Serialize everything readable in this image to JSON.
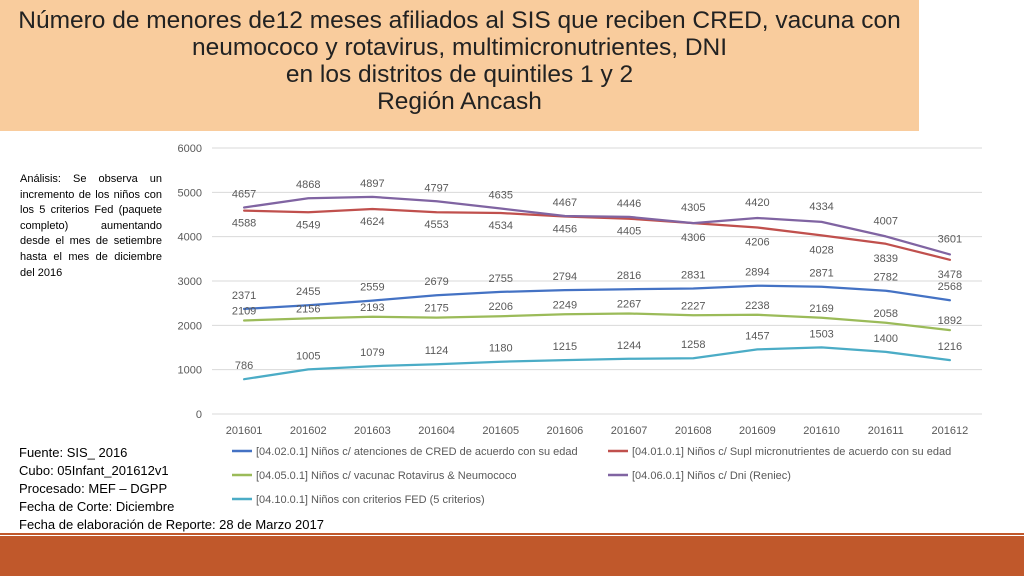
{
  "title": {
    "line1": "Número de menores de12 meses afiliados al SIS que reciben CRED, vacuna con",
    "line2": "neumococo y rotavirus, multimicronutrientes, DNI",
    "line3": "en los distritos de quintiles 1 y 2",
    "line4": "Región Ancash"
  },
  "analysis": "Análisis: Se observa un incremento de los niños con los 5 criterios Fed (paquete completo) aumentando desde el mes de setiembre hasta el mes de diciembre del 2016",
  "source": {
    "fuente": "Fuente: SIS_ 2016",
    "cubo": "Cubo: 05Infant_201612v1",
    "procesado": "Procesado: MEF – DGPP",
    "fecha_corte": "Fecha de Corte: Diciembre",
    "fecha_elab": "Fecha de elaboración de Reporte: 28 de Marzo 2017"
  },
  "colors": {
    "header_bg": "#f9cc9d",
    "bottom_band": "#c0582b"
  },
  "chart_data": {
    "type": "line",
    "categories": [
      "201601",
      "201602",
      "201603",
      "201604",
      "201605",
      "201606",
      "201607",
      "201608",
      "201609",
      "201610",
      "201611",
      "201612"
    ],
    "yticks": [
      0,
      1000,
      2000,
      3000,
      4000,
      5000,
      6000
    ],
    "ylim": [
      0,
      6000
    ],
    "grid": true,
    "legend_position": "bottom",
    "series": [
      {
        "name": "[04.02.0.1] Niños c/ atenciones de CRED de acuerdo con su edad",
        "color": "#4472c4",
        "values": [
          2371,
          2455,
          2559,
          2679,
          2755,
          2794,
          2816,
          2831,
          2894,
          2871,
          2782,
          2568
        ]
      },
      {
        "name": "[04.01.0.1] Niños c/ Supl micronutrientes de acuerdo con su edad",
        "color": "#c0504d",
        "values": [
          4588,
          4549,
          4624,
          4553,
          4534,
          4456,
          4405,
          4306,
          4206,
          4028,
          3839,
          3478
        ]
      },
      {
        "name": "[04.05.0.1] Niños c/ vacunac Rotavirus & Neumococo",
        "color": "#9bbb59",
        "values": [
          2109,
          2156,
          2193,
          2175,
          2206,
          2249,
          2267,
          2227,
          2238,
          2169,
          2058,
          1892
        ]
      },
      {
        "name": "[04.06.0.1] Niños c/ Dni (Reniec)",
        "color": "#8064a2",
        "values": [
          4657,
          4868,
          4897,
          4797,
          4635,
          4467,
          4446,
          4305,
          4420,
          4334,
          4007,
          3601
        ]
      },
      {
        "name": "[04.10.0.1] Niños con criterios FED (5 criterios)",
        "color": "#4bacc6",
        "values": [
          786,
          1005,
          1079,
          1124,
          1180,
          1215,
          1244,
          1258,
          1457,
          1503,
          1400,
          1216
        ]
      }
    ]
  }
}
